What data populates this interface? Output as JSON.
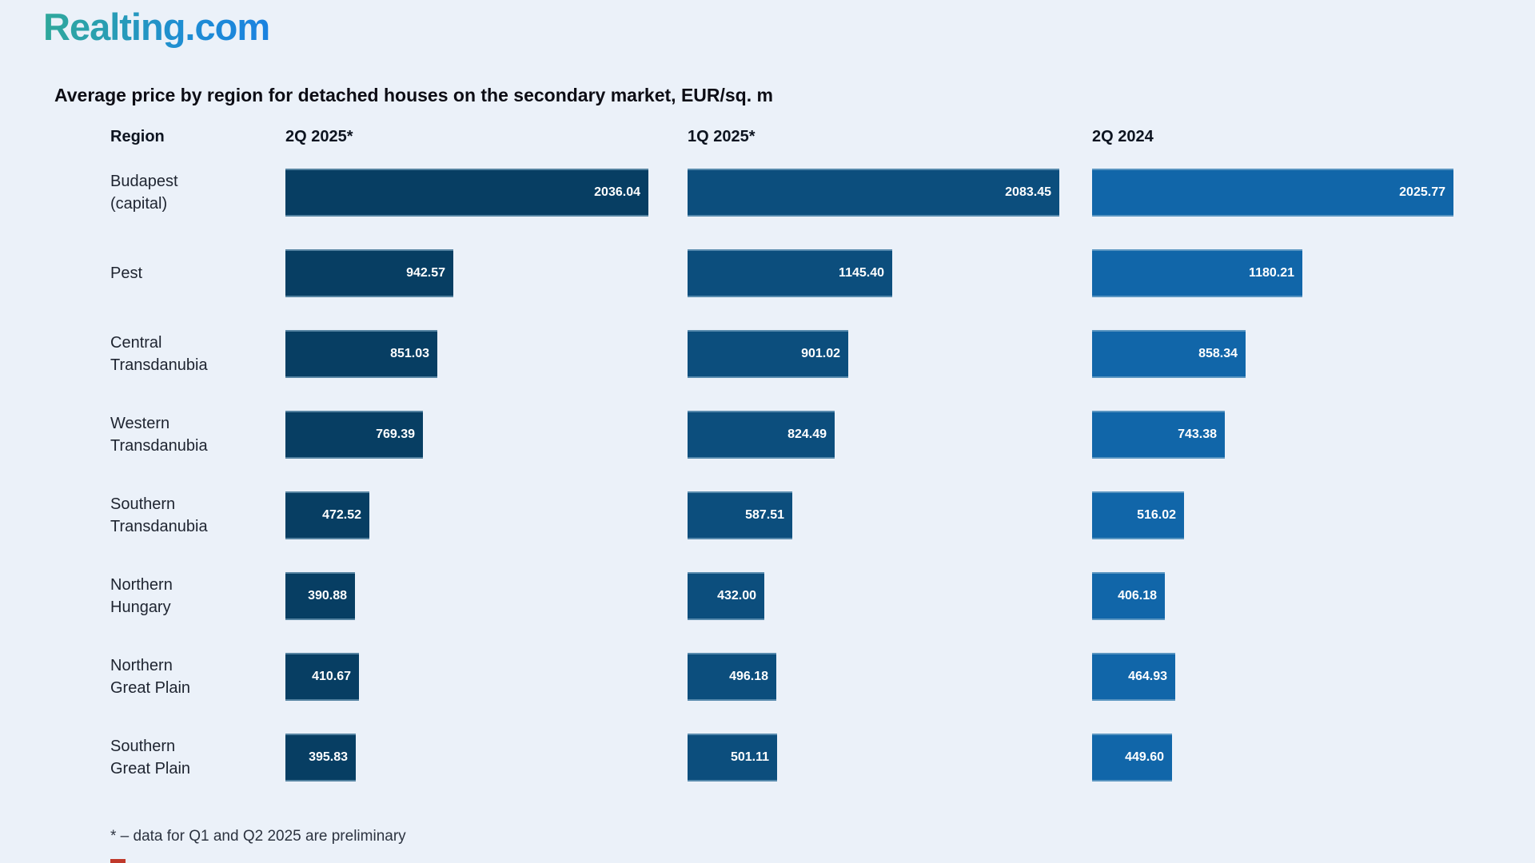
{
  "logo": {
    "text": "Realting.com"
  },
  "title": "Average price by region for detached houses on the secondary market, EUR/sq. m",
  "footnote": "* – data for Q1 and Q2 2025 are preliminary",
  "accent_colors": {
    "background": "#ebf1f9",
    "logo_teal": "#2fa89b",
    "logo_blue": "#1a82e0",
    "red_strip": "#c0392b"
  },
  "columns": {
    "region_header": "Region",
    "periods": [
      {
        "label": "2Q 2025*",
        "color": "#073e63"
      },
      {
        "label": "1Q 2025*",
        "color": "#0c4e7d"
      },
      {
        "label": "2Q 2024",
        "color": "#1166a9"
      }
    ]
  },
  "rows": [
    {
      "region_lines": [
        "Budapest",
        "(capital)"
      ],
      "values": [
        "2036.04",
        "2083.45",
        "2025.77"
      ]
    },
    {
      "region_lines": [
        "Pest"
      ],
      "values": [
        "942.57",
        "1145.40",
        "1180.21"
      ]
    },
    {
      "region_lines": [
        "Central",
        "Transdanubia"
      ],
      "values": [
        "851.03",
        "901.02",
        "858.34"
      ]
    },
    {
      "region_lines": [
        "Western",
        "Transdanubia"
      ],
      "values": [
        "769.39",
        "824.49",
        "743.38"
      ]
    },
    {
      "region_lines": [
        "Southern",
        "Transdanubia"
      ],
      "values": [
        "472.52",
        "587.51",
        "516.02"
      ]
    },
    {
      "region_lines": [
        "Northern",
        "Hungary"
      ],
      "values": [
        "390.88",
        "432.00",
        "406.18"
      ]
    },
    {
      "region_lines": [
        "Northern",
        "Great Plain"
      ],
      "values": [
        "410.67",
        "496.18",
        "464.93"
      ]
    },
    {
      "region_lines": [
        "Southern",
        "Great Plain"
      ],
      "values": [
        "395.83",
        "501.11",
        "449.60"
      ]
    }
  ],
  "chart_data": {
    "type": "bar",
    "orientation": "horizontal",
    "title": "Average price by region for detached houses on the secondary market, EUR/sq. m",
    "unit": "EUR/sq. m",
    "categories": [
      "Budapest (capital)",
      "Pest",
      "Central Transdanubia",
      "Western Transdanubia",
      "Southern Transdanubia",
      "Northern Hungary",
      "Northern Great Plain",
      "Southern Great Plain"
    ],
    "series": [
      {
        "name": "2Q 2025*",
        "color": "#073e63",
        "values": [
          2036.04,
          942.57,
          851.03,
          769.39,
          472.52,
          390.88,
          410.67,
          395.83
        ]
      },
      {
        "name": "1Q 2025*",
        "color": "#0c4e7d",
        "values": [
          2083.45,
          1145.4,
          901.02,
          824.49,
          587.51,
          432.0,
          496.18,
          501.11
        ]
      },
      {
        "name": "2Q 2024",
        "color": "#1166a9",
        "values": [
          2025.77,
          1180.21,
          858.34,
          743.38,
          516.02,
          406.18,
          464.93,
          449.6
        ]
      }
    ],
    "value_labels": true,
    "xlim": [
      0,
      2100
    ],
    "grid": false,
    "legend_position": "column-headers",
    "footnote": "* – data for Q1 and Q2 2025 are preliminary"
  }
}
